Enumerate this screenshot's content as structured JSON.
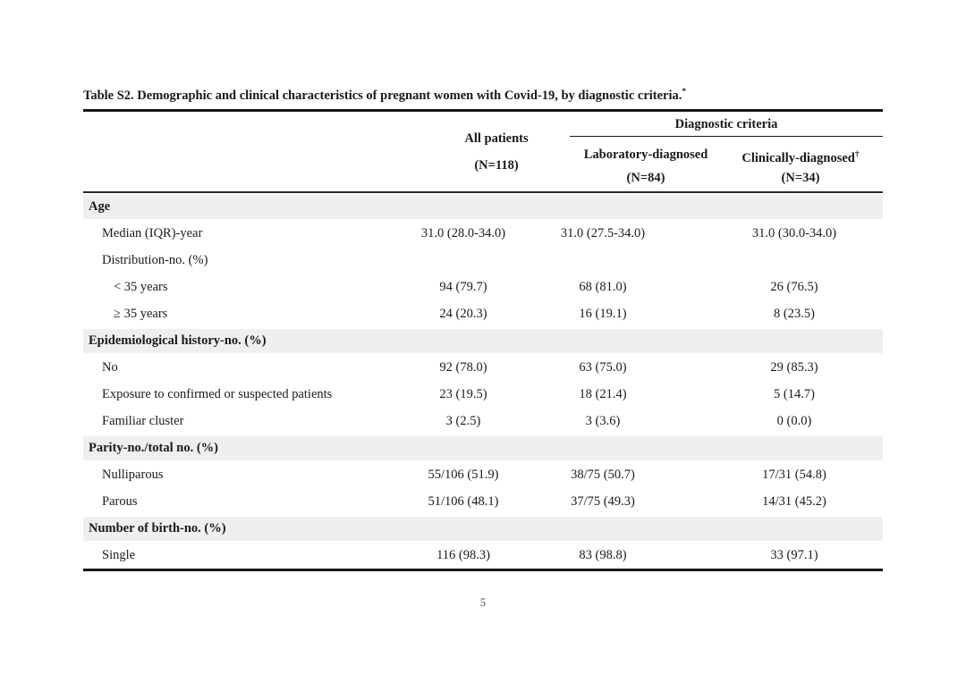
{
  "title": {
    "text": "Table S2. Demographic and clinical characteristics of pregnant women with Covid-19, by diagnostic criteria.",
    "footnote_marker": "*"
  },
  "table": {
    "header": {
      "all_patients": {
        "label": "All patients",
        "n": "(N=118)"
      },
      "group": {
        "label": "Diagnostic criteria"
      },
      "laboratory": {
        "label": "Laboratory-diagnosed",
        "n": "(N=84)"
      },
      "clinically": {
        "label": "Clinically-diagnosed",
        "marker": "†",
        "n": "(N=34)"
      }
    },
    "rows": [
      {
        "type": "section",
        "label": "Age"
      },
      {
        "type": "item",
        "label": "Median (IQR)-year",
        "values": [
          "31.0 (28.0-34.0)",
          "31.0 (27.5-34.0)",
          "31.0 (30.0-34.0)"
        ]
      },
      {
        "type": "item",
        "label": "Distribution-no. (%)",
        "values": [
          "",
          "",
          ""
        ]
      },
      {
        "type": "subitem",
        "label": "< 35 years",
        "values": [
          "94 (79.7)",
          "68 (81.0)",
          "26 (76.5)"
        ]
      },
      {
        "type": "subitem",
        "label": "≥ 35 years",
        "values": [
          "24 (20.3)",
          "16 (19.1)",
          "8 (23.5)"
        ]
      },
      {
        "type": "section",
        "label": "Epidemiological history-no. (%)"
      },
      {
        "type": "item",
        "label": "No",
        "values": [
          "92 (78.0)",
          "63 (75.0)",
          "29 (85.3)"
        ]
      },
      {
        "type": "item",
        "label": "Exposure to confirmed or suspected patients",
        "values": [
          "23 (19.5)",
          "18 (21.4)",
          "5 (14.7)"
        ]
      },
      {
        "type": "item",
        "label": "Familiar cluster",
        "values": [
          "3 (2.5)",
          "3 (3.6)",
          "0 (0.0)"
        ]
      },
      {
        "type": "section",
        "label": "Parity-no./total no. (%)"
      },
      {
        "type": "item",
        "label": "Nulliparous",
        "values": [
          "55/106 (51.9)",
          "38/75 (50.7)",
          "17/31 (54.8)"
        ]
      },
      {
        "type": "item",
        "label": "Parous",
        "values": [
          "51/106 (48.1)",
          "37/75 (49.3)",
          "14/31 (45.2)"
        ]
      },
      {
        "type": "section",
        "label": "Number of birth-no. (%)"
      },
      {
        "type": "item",
        "label": "Single",
        "values": [
          "116 (98.3)",
          "83 (98.8)",
          "33 (97.1)"
        ]
      }
    ]
  },
  "footer": {
    "page_number": "5"
  },
  "colors": {
    "section_background": "#efefef",
    "rule": "#1a1a1a",
    "page_background": "#ffffff"
  }
}
